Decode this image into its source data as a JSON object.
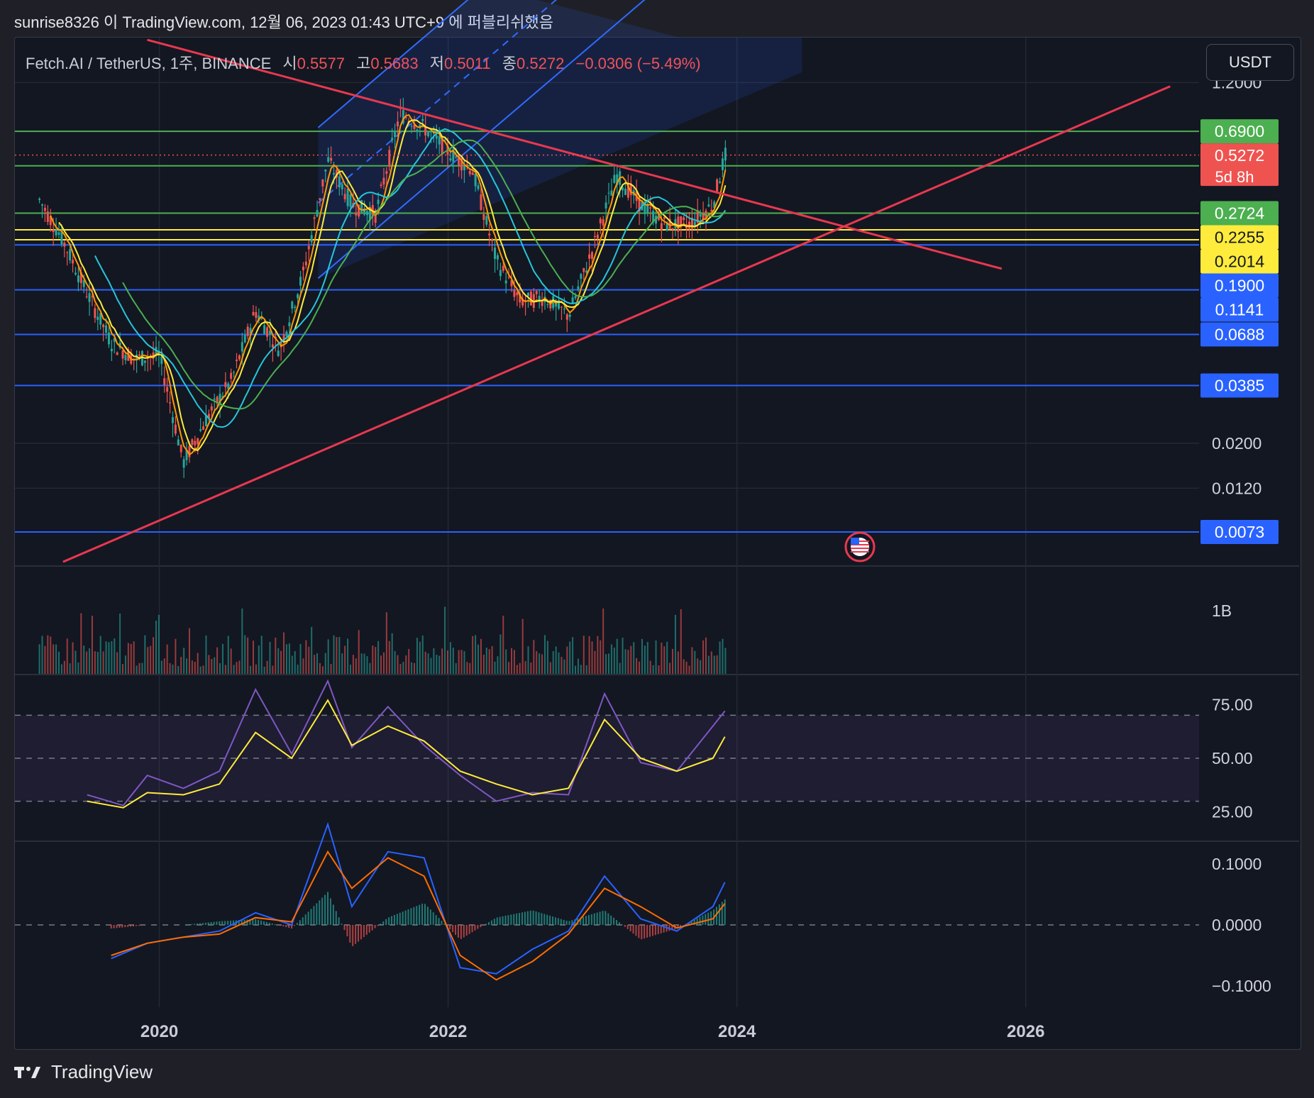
{
  "header": {
    "published_by": "sunrise8326 이 TradingView.com, 12월 06, 2023 01:43 UTC+9 에 퍼블리쉬했음"
  },
  "legend": {
    "symbol": "Fetch.AI / TetherUS, 1주, BINANCE",
    "open_label": "시",
    "open": "0.5577",
    "high_label": "고",
    "high": "0.5683",
    "low_label": "저",
    "low": "0.5011",
    "close_label": "종",
    "close": "0.5272",
    "change": "−0.0306 (−5.49%)"
  },
  "currency_button": "USDT",
  "footer": {
    "logo_text": "TradingView"
  },
  "colors": {
    "background": "#131722",
    "up": "#26a69a",
    "down": "#ef5350",
    "trendline": "#e8384f",
    "level_blue": "#2962ff",
    "level_green": "#4caf50",
    "level_yellow": "#ffeb3b",
    "rsi": "#7e57c2",
    "rsi_ma": "#ffeb3b",
    "macd": "#2962ff",
    "signal": "#ff6d00"
  },
  "chart_data": [
    {
      "type": "candlestick",
      "title": "Fetch.AI / TetherUS, 1주, BINANCE",
      "scale": "log",
      "ylim": [
        0.005,
        2.0
      ],
      "y_ticks": [
        "1.2000",
        "0.0200",
        "0.0120"
      ],
      "x_ticks": [
        "2020",
        "2022",
        "2024",
        "2026"
      ],
      "grid": true,
      "horizontal_levels": [
        {
          "value": 0.69,
          "label": "0.6900",
          "color": "#4caf50"
        },
        {
          "value": 0.4663,
          "label": "0.4663",
          "color": "#4caf50"
        },
        {
          "value": 0.2724,
          "label": "0.2724",
          "color": "#4caf50"
        },
        {
          "value": 0.2255,
          "label": "0.2255",
          "color": "#ffeb3b"
        },
        {
          "value": 0.2014,
          "label": "0.2014",
          "color": "#ffeb3b"
        },
        {
          "value": 0.19,
          "label": "0.1900",
          "color": "#2962ff"
        },
        {
          "value": 0.1141,
          "label": "0.1141",
          "color": "#2962ff"
        },
        {
          "value": 0.0688,
          "label": "0.0688",
          "color": "#2962ff"
        },
        {
          "value": 0.0385,
          "label": "0.0385",
          "color": "#2962ff"
        },
        {
          "value": 0.0073,
          "label": "0.0073",
          "color": "#2962ff"
        }
      ],
      "current_price": {
        "value": 0.5272,
        "label": "0.5272",
        "countdown": "5d 8h",
        "color": "#ef5350"
      },
      "series_close": {
        "x": [
          "2019-03",
          "2019-05",
          "2019-07",
          "2019-09",
          "2019-11",
          "2020-01",
          "2020-03",
          "2020-05",
          "2020-07",
          "2020-09",
          "2020-11",
          "2021-01",
          "2021-03",
          "2021-05",
          "2021-07",
          "2021-09",
          "2021-11",
          "2022-01",
          "2022-03",
          "2022-05",
          "2022-07",
          "2022-09",
          "2022-11",
          "2023-01",
          "2023-03",
          "2023-05",
          "2023-07",
          "2023-09",
          "2023-11",
          "2023-12"
        ],
        "close": [
          0.32,
          0.2,
          0.11,
          0.063,
          0.052,
          0.055,
          0.016,
          0.027,
          0.041,
          0.09,
          0.058,
          0.14,
          0.5,
          0.3,
          0.27,
          0.85,
          0.72,
          0.55,
          0.45,
          0.16,
          0.1,
          0.105,
          0.085,
          0.18,
          0.42,
          0.3,
          0.24,
          0.24,
          0.3,
          0.5272
        ]
      },
      "trendlines": [
        {
          "from": [
            "2019-12",
            1.95
          ],
          "to": [
            "2025-11",
            0.145
          ]
        },
        {
          "from": [
            "2019-05",
            0.0052
          ],
          "to": [
            "2027-01",
            1.15
          ]
        }
      ]
    },
    {
      "type": "bar",
      "title": "Volume",
      "y_ticks": [
        "1B"
      ]
    },
    {
      "type": "line",
      "title": "RSI",
      "y_ticks": [
        "75.00",
        "50.00",
        "25.00"
      ],
      "bands": [
        70,
        50,
        30
      ],
      "series": [
        {
          "name": "",
          "x": [
            "2019-07",
            "2019-10",
            "2019-12",
            "2020-03",
            "2020-06",
            "2020-09",
            "2020-12",
            "2021-03",
            "2021-05",
            "2021-08",
            "2021-11",
            "2022-02",
            "2022-05",
            "2022-08",
            "2022-11",
            "2023-02",
            "2023-05",
            "2023-08",
            "2023-11",
            "2023-12"
          ],
          "values": [
            33,
            28,
            42,
            36,
            44,
            82,
            52,
            86,
            55,
            74,
            56,
            42,
            30,
            34,
            33,
            80,
            48,
            44,
            65,
            72
          ]
        },
        {
          "name": "",
          "x": [
            "2019-07",
            "2019-10",
            "2019-12",
            "2020-03",
            "2020-06",
            "2020-09",
            "2020-12",
            "2021-03",
            "2021-05",
            "2021-08",
            "2021-11",
            "2022-02",
            "2022-05",
            "2022-08",
            "2022-11",
            "2023-02",
            "2023-05",
            "2023-08",
            "2023-11",
            "2023-12"
          ],
          "values": [
            30,
            27,
            34,
            33,
            38,
            62,
            50,
            77,
            56,
            65,
            58,
            44,
            38,
            33,
            36,
            68,
            50,
            44,
            50,
            60
          ]
        }
      ]
    },
    {
      "type": "line",
      "title": "MACD",
      "y_ticks": [
        "0.1000",
        "0.0000",
        "−0.1000"
      ],
      "series": [
        {
          "name": "",
          "x": [
            "2019-09",
            "2019-12",
            "2020-03",
            "2020-06",
            "2020-09",
            "2020-12",
            "2021-03",
            "2021-05",
            "2021-08",
            "2021-11",
            "2022-02",
            "2022-05",
            "2022-08",
            "2022-11",
            "2023-02",
            "2023-05",
            "2023-08",
            "2023-11",
            "2023-12"
          ],
          "values": [
            -0.055,
            -0.03,
            -0.02,
            -0.01,
            0.02,
            0.0,
            0.165,
            0.03,
            0.12,
            0.11,
            -0.07,
            -0.08,
            -0.04,
            -0.01,
            0.08,
            0.01,
            -0.01,
            0.03,
            0.07
          ]
        },
        {
          "name": "",
          "x": [
            "2019-09",
            "2019-12",
            "2020-03",
            "2020-06",
            "2020-09",
            "2020-12",
            "2021-03",
            "2021-05",
            "2021-08",
            "2021-11",
            "2022-02",
            "2022-05",
            "2022-08",
            "2022-11",
            "2023-02",
            "2023-05",
            "2023-08",
            "2023-11",
            "2023-12"
          ],
          "values": [
            -0.05,
            -0.03,
            -0.02,
            -0.015,
            0.012,
            0.005,
            0.12,
            0.06,
            0.11,
            0.08,
            -0.05,
            -0.09,
            -0.06,
            -0.015,
            0.06,
            0.03,
            -0.005,
            0.01,
            0.035
          ]
        }
      ]
    }
  ]
}
